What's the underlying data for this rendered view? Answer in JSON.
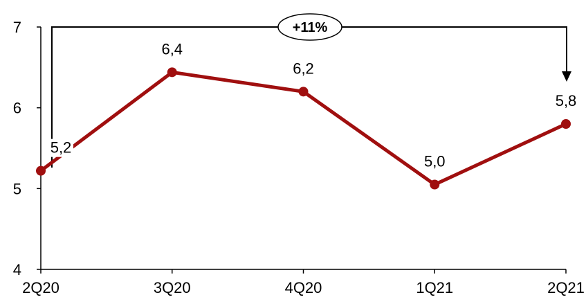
{
  "chart_data": {
    "type": "line",
    "x": [
      "2Q20",
      "3Q20",
      "4Q20",
      "1Q21",
      "2Q21"
    ],
    "series": [
      {
        "values": [
          5.22,
          6.44,
          6.2,
          5.05,
          5.8
        ],
        "labels": [
          "5,2",
          "6,4",
          "6,2",
          "5,0",
          "5,8"
        ]
      }
    ],
    "ylim": [
      4,
      7
    ],
    "yticks": [
      4,
      5,
      6,
      7
    ],
    "ytick_labels": [
      "4",
      "5",
      "6",
      "7"
    ],
    "grid": false,
    "annotation": {
      "text": "+11%",
      "from": "2Q20",
      "to": "2Q21"
    }
  },
  "colors": {
    "series": "#a00f0f",
    "axis": "#000000"
  }
}
